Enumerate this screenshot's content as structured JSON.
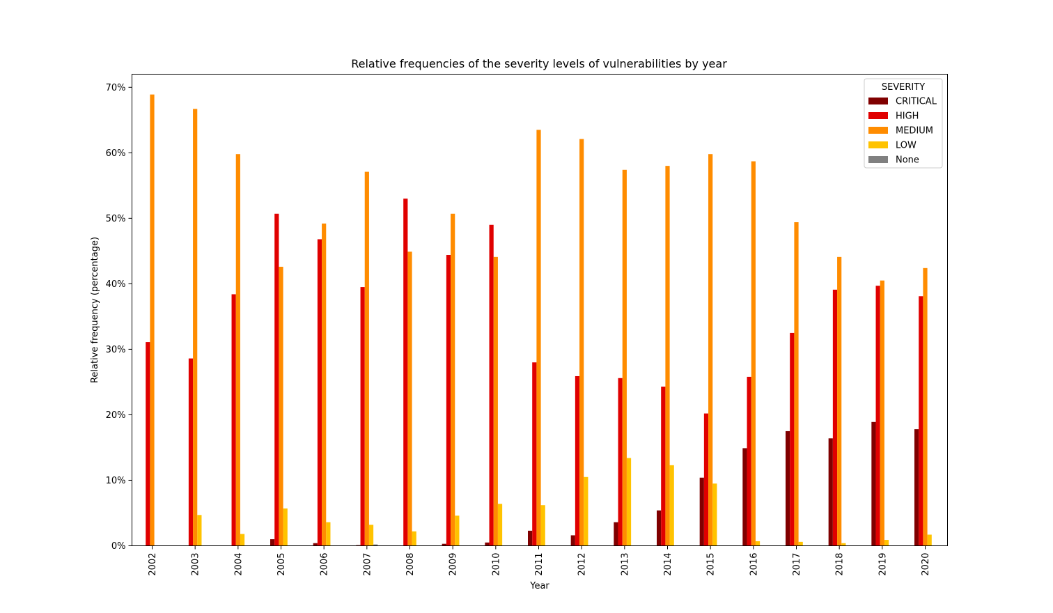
{
  "chart_data": {
    "type": "bar",
    "title": "Relative frequencies of the severity levels of vulnerabilities by year",
    "xlabel": "Year",
    "ylabel": "Relative frequency (percentage)",
    "ylim": [
      0,
      72
    ],
    "yticks": [
      0,
      10,
      20,
      30,
      40,
      50,
      60,
      70
    ],
    "ytick_suffix": "%",
    "categories": [
      "2002",
      "2003",
      "2004",
      "2005",
      "2006",
      "2007",
      "2008",
      "2009",
      "2010",
      "2011",
      "2012",
      "2013",
      "2014",
      "2015",
      "2016",
      "2017",
      "2018",
      "2019",
      "2020"
    ],
    "legend": {
      "title": "SEVERITY",
      "position": "top-right"
    },
    "grid": false,
    "series": [
      {
        "name": "CRITICAL",
        "color": "#800000",
        "values": [
          0,
          0,
          0,
          1.0,
          0.4,
          0.1,
          0,
          0.3,
          0.5,
          2.3,
          1.6,
          3.6,
          5.4,
          10.4,
          14.9,
          17.5,
          16.4,
          18.9,
          17.8
        ]
      },
      {
        "name": "HIGH",
        "color": "#e00000",
        "values": [
          31.1,
          28.6,
          38.4,
          50.7,
          46.8,
          39.5,
          53.0,
          44.4,
          49.0,
          28.0,
          25.9,
          25.6,
          24.3,
          20.2,
          25.8,
          32.5,
          39.1,
          39.7,
          38.1
        ]
      },
      {
        "name": "MEDIUM",
        "color": "#ff8c00",
        "values": [
          68.9,
          66.7,
          59.8,
          42.6,
          49.2,
          57.1,
          44.9,
          50.7,
          44.1,
          63.5,
          62.1,
          57.4,
          58.0,
          59.8,
          58.7,
          49.4,
          44.1,
          40.5,
          42.4
        ]
      },
      {
        "name": "LOW",
        "color": "#ffc300",
        "values": [
          0,
          4.7,
          1.8,
          5.7,
          3.6,
          3.2,
          2.2,
          4.6,
          6.4,
          6.2,
          10.5,
          13.4,
          12.3,
          9.5,
          0.7,
          0.6,
          0.4,
          0.9,
          1.7
        ]
      },
      {
        "name": "None",
        "color": "#808080",
        "values": [
          0,
          0,
          0,
          0,
          0,
          0.2,
          0,
          0,
          0,
          0,
          0,
          0,
          0,
          0,
          0,
          0,
          0,
          0,
          0
        ]
      }
    ]
  }
}
